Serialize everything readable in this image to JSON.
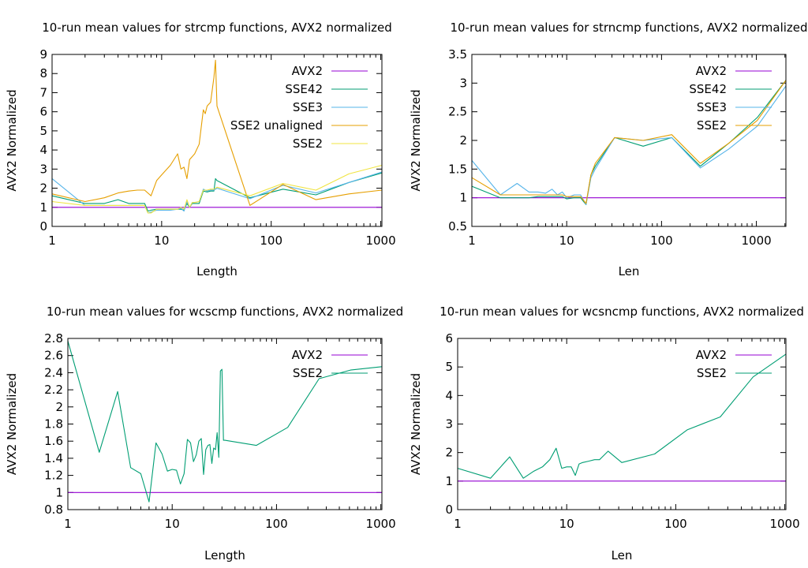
{
  "chart_data": [
    {
      "type": "line",
      "title": "10-run mean values for strcmp functions, AVX2 normalized",
      "xlabel": "Length",
      "ylabel": "AVX2 Normalized",
      "xscale": "log",
      "xlim": [
        1,
        1024
      ],
      "ylim": [
        0,
        9
      ],
      "xticks": [
        1,
        10,
        100,
        1000
      ],
      "xtick_labels": [
        "1",
        "10",
        "100",
        "1000"
      ],
      "yticks": [
        0,
        1,
        2,
        3,
        4,
        5,
        6,
        7,
        8,
        9
      ],
      "ytick_labels": [
        "0",
        "1",
        "2",
        "3",
        "4",
        "5",
        "6",
        "7",
        "8",
        "9"
      ],
      "legend_position": "top-right",
      "series": [
        {
          "name": "AVX2",
          "color": "#9400d3",
          "x": [
            1,
            1024
          ],
          "y": [
            1,
            1
          ]
        },
        {
          "name": "SSE42",
          "color": "#009e73",
          "x": [
            1,
            2,
            3,
            4,
            5,
            6,
            7,
            7.5,
            8,
            9,
            10,
            12,
            14,
            15,
            16,
            17,
            18,
            19,
            20,
            22,
            24,
            26,
            28,
            30,
            31,
            32,
            64,
            128,
            256,
            512,
            1024
          ],
          "y": [
            1.6,
            1.2,
            1.2,
            1.4,
            1.2,
            1.2,
            1.2,
            0.8,
            0.85,
            0.9,
            0.9,
            0.9,
            0.9,
            0.9,
            0.85,
            1.2,
            1.0,
            1.2,
            1.2,
            1.2,
            1.85,
            1.8,
            1.85,
            1.85,
            2.5,
            2.4,
            1.5,
            1.95,
            1.65,
            2.3,
            2.8
          ]
        },
        {
          "name": "SSE3",
          "color": "#56b4e9",
          "x": [
            1,
            2,
            3,
            4,
            5,
            6,
            7,
            7.5,
            8,
            9,
            10,
            12,
            14,
            15,
            16,
            17,
            18,
            19,
            20,
            22,
            24,
            26,
            28,
            30,
            32,
            64,
            128,
            256,
            512,
            1024
          ],
          "y": [
            2.5,
            1.1,
            1.1,
            1.1,
            1.1,
            1.1,
            1.1,
            0.7,
            0.75,
            0.85,
            0.85,
            0.85,
            0.9,
            0.95,
            0.8,
            1.3,
            1.0,
            1.25,
            1.25,
            1.3,
            1.95,
            1.85,
            1.9,
            1.9,
            2.0,
            1.45,
            2.15,
            1.75,
            2.3,
            2.85
          ]
        },
        {
          "name": "SSE2 unaligned",
          "color": "#e69f00",
          "x": [
            1,
            2,
            3,
            4,
            5,
            6,
            7,
            8,
            9,
            10,
            12,
            14,
            15,
            16,
            17,
            18,
            20,
            22,
            24,
            25,
            26,
            28,
            30,
            31,
            32,
            64,
            128,
            256,
            512,
            1024
          ],
          "y": [
            1.7,
            1.3,
            1.5,
            1.75,
            1.85,
            1.9,
            1.9,
            1.6,
            2.4,
            2.7,
            3.2,
            3.8,
            3.0,
            3.1,
            2.5,
            3.5,
            3.8,
            4.3,
            6.1,
            5.9,
            6.3,
            6.5,
            7.8,
            8.7,
            6.3,
            1.1,
            2.2,
            1.4,
            1.7,
            1.9
          ]
        },
        {
          "name": "SSE2",
          "color": "#f0e442",
          "x": [
            1,
            2,
            3,
            4,
            5,
            6,
            7,
            7.5,
            8,
            9,
            10,
            12,
            14,
            15,
            16,
            17,
            18,
            19,
            20,
            22,
            24,
            26,
            28,
            30,
            32,
            64,
            128,
            256,
            512,
            1024
          ],
          "y": [
            1.3,
            1.1,
            1.1,
            1.1,
            1.1,
            1.1,
            1.1,
            0.7,
            0.7,
            0.9,
            0.9,
            0.9,
            0.9,
            1.0,
            0.9,
            1.4,
            1.0,
            1.25,
            1.25,
            1.3,
            1.9,
            1.9,
            1.95,
            1.95,
            2.05,
            1.6,
            2.25,
            1.9,
            2.75,
            3.2
          ]
        }
      ]
    },
    {
      "type": "line",
      "title": "10-run mean values for strncmp functions, AVX2 normalized",
      "xlabel": "Len",
      "ylabel": "AVX2 Normalized",
      "xscale": "log",
      "xlim": [
        1,
        2048
      ],
      "ylim": [
        0.5,
        3.5
      ],
      "xticks": [
        1,
        10,
        100,
        1000
      ],
      "xtick_labels": [
        "1",
        "10",
        "100",
        "1000"
      ],
      "yticks": [
        0.5,
        1,
        1.5,
        2,
        2.5,
        3,
        3.5
      ],
      "ytick_labels": [
        "0.5",
        "1",
        "1.5",
        "2",
        "2.5",
        "3",
        "3.5"
      ],
      "legend_position": "top-right",
      "series": [
        {
          "name": "AVX2",
          "color": "#9400d3",
          "x": [
            1,
            2048
          ],
          "y": [
            1,
            1
          ]
        },
        {
          "name": "SSE42",
          "color": "#009e73",
          "x": [
            1,
            2,
            3,
            4,
            5,
            6,
            7,
            8,
            9,
            10,
            12,
            14,
            16,
            18,
            20,
            32,
            64,
            128,
            256,
            512,
            1024,
            2048
          ],
          "y": [
            1.2,
            1.0,
            1.0,
            1.0,
            1.02,
            1.02,
            1.02,
            1.02,
            1.02,
            0.98,
            1.0,
            1.0,
            0.88,
            1.4,
            1.55,
            2.05,
            1.9,
            2.05,
            1.55,
            1.95,
            2.4,
            3.05
          ]
        },
        {
          "name": "SSE3",
          "color": "#56b4e9",
          "x": [
            1,
            2,
            3,
            4,
            5,
            6,
            7,
            8,
            9,
            10,
            12,
            14,
            16,
            18,
            20,
            32,
            64,
            128,
            256,
            512,
            1024,
            2048
          ],
          "y": [
            1.65,
            1.05,
            1.25,
            1.1,
            1.1,
            1.08,
            1.15,
            1.05,
            1.1,
            1.0,
            1.05,
            1.05,
            0.88,
            1.35,
            1.5,
            2.05,
            2.0,
            2.05,
            1.52,
            1.85,
            2.25,
            2.95
          ]
        },
        {
          "name": "SSE2",
          "color": "#e69f00",
          "x": [
            1,
            2,
            3,
            4,
            5,
            6,
            7,
            8,
            9,
            10,
            12,
            14,
            16,
            18,
            20,
            32,
            64,
            128,
            256,
            512,
            1024,
            2048
          ],
          "y": [
            1.35,
            1.05,
            1.05,
            1.05,
            1.05,
            1.05,
            1.05,
            1.05,
            1.05,
            1.02,
            1.02,
            1.02,
            0.9,
            1.4,
            1.6,
            2.05,
            2.0,
            2.1,
            1.6,
            1.95,
            2.35,
            3.05
          ]
        }
      ]
    },
    {
      "type": "line",
      "title": "10-run mean values for wcscmp functions, AVX2 normalized",
      "xlabel": "Length",
      "ylabel": "AVX2 Normalized",
      "xscale": "log",
      "xlim": [
        1,
        1024
      ],
      "ylim": [
        0.8,
        2.8
      ],
      "xticks": [
        1,
        10,
        100,
        1000
      ],
      "xtick_labels": [
        "1",
        "10",
        "100",
        "1000"
      ],
      "yticks": [
        0.8,
        1,
        1.2,
        1.4,
        1.6,
        1.8,
        2,
        2.2,
        2.4,
        2.6,
        2.8
      ],
      "ytick_labels": [
        "0.8",
        "1",
        "1.2",
        "1.4",
        "1.6",
        "1.8",
        "2",
        "2.2",
        "2.4",
        "2.6",
        "2.8"
      ],
      "legend_position": "top-right",
      "series": [
        {
          "name": "AVX2",
          "color": "#9400d3",
          "x": [
            1,
            1024
          ],
          "y": [
            1,
            1
          ]
        },
        {
          "name": "SSE2",
          "color": "#009e73",
          "x": [
            1,
            2,
            3,
            4,
            5,
            6,
            7,
            8,
            9,
            10,
            11,
            12,
            13,
            14,
            15,
            16,
            17,
            18,
            19,
            20,
            21,
            22,
            23,
            24,
            25,
            26,
            27,
            28,
            29,
            30,
            31,
            32,
            64,
            128,
            256,
            512,
            1024
          ],
          "y": [
            2.77,
            1.47,
            2.18,
            1.29,
            1.22,
            0.89,
            1.58,
            1.45,
            1.25,
            1.27,
            1.26,
            1.1,
            1.22,
            1.62,
            1.58,
            1.36,
            1.44,
            1.6,
            1.63,
            1.21,
            1.5,
            1.55,
            1.56,
            1.34,
            1.52,
            1.5,
            1.7,
            1.41,
            2.42,
            2.44,
            1.61,
            1.61,
            1.55,
            1.76,
            2.33,
            2.43,
            2.47
          ]
        }
      ]
    },
    {
      "type": "line",
      "title": "10-run mean values for wcsncmp functions, AVX2 normalized",
      "xlabel": "Len",
      "ylabel": "AVX2 Normalized",
      "xscale": "log",
      "xlim": [
        1,
        1024
      ],
      "ylim": [
        0,
        6
      ],
      "xticks": [
        1,
        10,
        100,
        1000
      ],
      "xtick_labels": [
        "1",
        "10",
        "100",
        "1000"
      ],
      "yticks": [
        0,
        1,
        2,
        3,
        4,
        5,
        6
      ],
      "ytick_labels": [
        "0",
        "1",
        "2",
        "3",
        "4",
        "5",
        "6"
      ],
      "legend_position": "top-right",
      "series": [
        {
          "name": "AVX2",
          "color": "#9400d3",
          "x": [
            1,
            1024
          ],
          "y": [
            1,
            1
          ]
        },
        {
          "name": "SSE2",
          "color": "#009e73",
          "x": [
            1,
            2,
            3,
            4,
            5,
            6,
            7,
            8,
            9,
            10,
            11,
            12,
            13,
            14,
            16,
            18,
            20,
            24,
            32,
            64,
            128,
            256,
            512,
            1024
          ],
          "y": [
            1.45,
            1.1,
            1.85,
            1.1,
            1.35,
            1.5,
            1.75,
            2.15,
            1.45,
            1.5,
            1.5,
            1.2,
            1.6,
            1.65,
            1.7,
            1.75,
            1.75,
            2.05,
            1.65,
            1.95,
            2.8,
            3.25,
            4.65,
            5.45
          ]
        }
      ]
    }
  ]
}
